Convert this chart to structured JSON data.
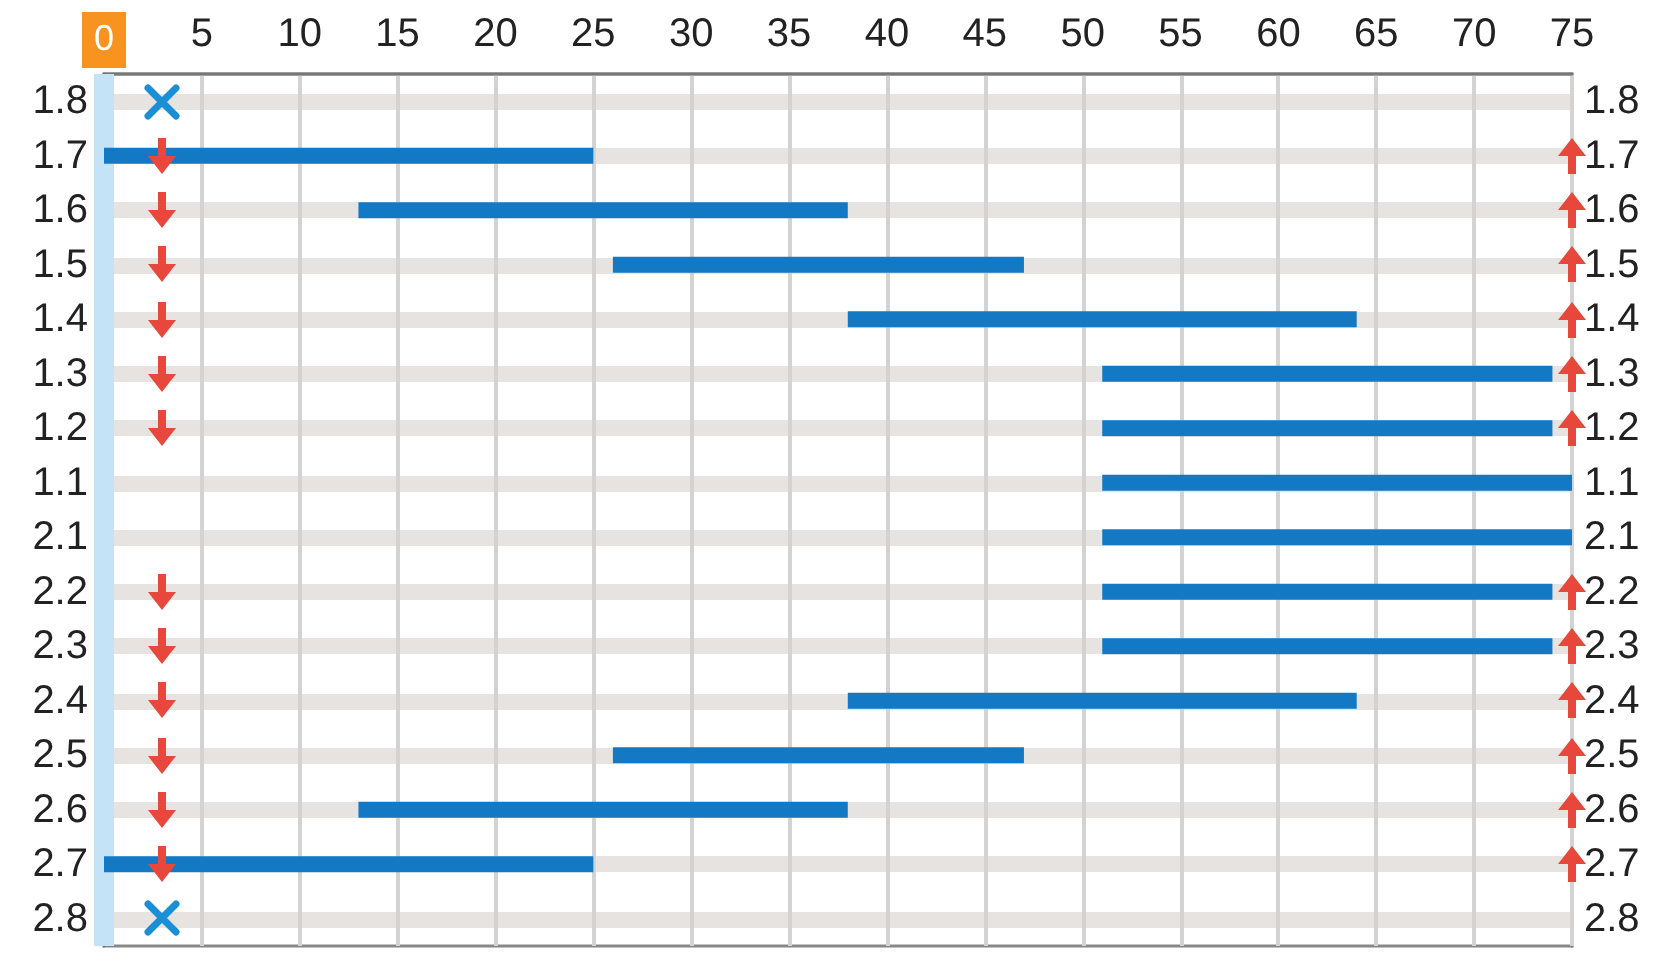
{
  "chart_data": {
    "type": "bar",
    "orientation": "horizontal",
    "categories": [
      "1.8",
      "1.7",
      "1.6",
      "1.5",
      "1.4",
      "1.3",
      "1.2",
      "1.1",
      "2.1",
      "2.2",
      "2.3",
      "2.4",
      "2.5",
      "2.6",
      "2.7",
      "2.8"
    ],
    "base": [
      null,
      0,
      13,
      26,
      38,
      51,
      51,
      51,
      51,
      51,
      51,
      38,
      26,
      13,
      0,
      null
    ],
    "values": [
      null,
      25,
      25,
      21,
      26,
      23,
      23,
      24,
      24,
      23,
      23,
      26,
      21,
      25,
      25,
      null
    ],
    "color": "#1479c5",
    "xlim": [
      0,
      75
    ],
    "xticks": [
      {
        "value": 0,
        "label": null
      },
      5,
      10,
      15,
      20,
      25,
      30,
      35,
      40,
      45,
      50,
      55,
      60,
      65,
      70,
      75
    ],
    "ref_lines": [
      {
        "axis": "x",
        "value": 0,
        "label": "0",
        "color": "#c5e3f6"
      }
    ],
    "grid": true
  }
}
